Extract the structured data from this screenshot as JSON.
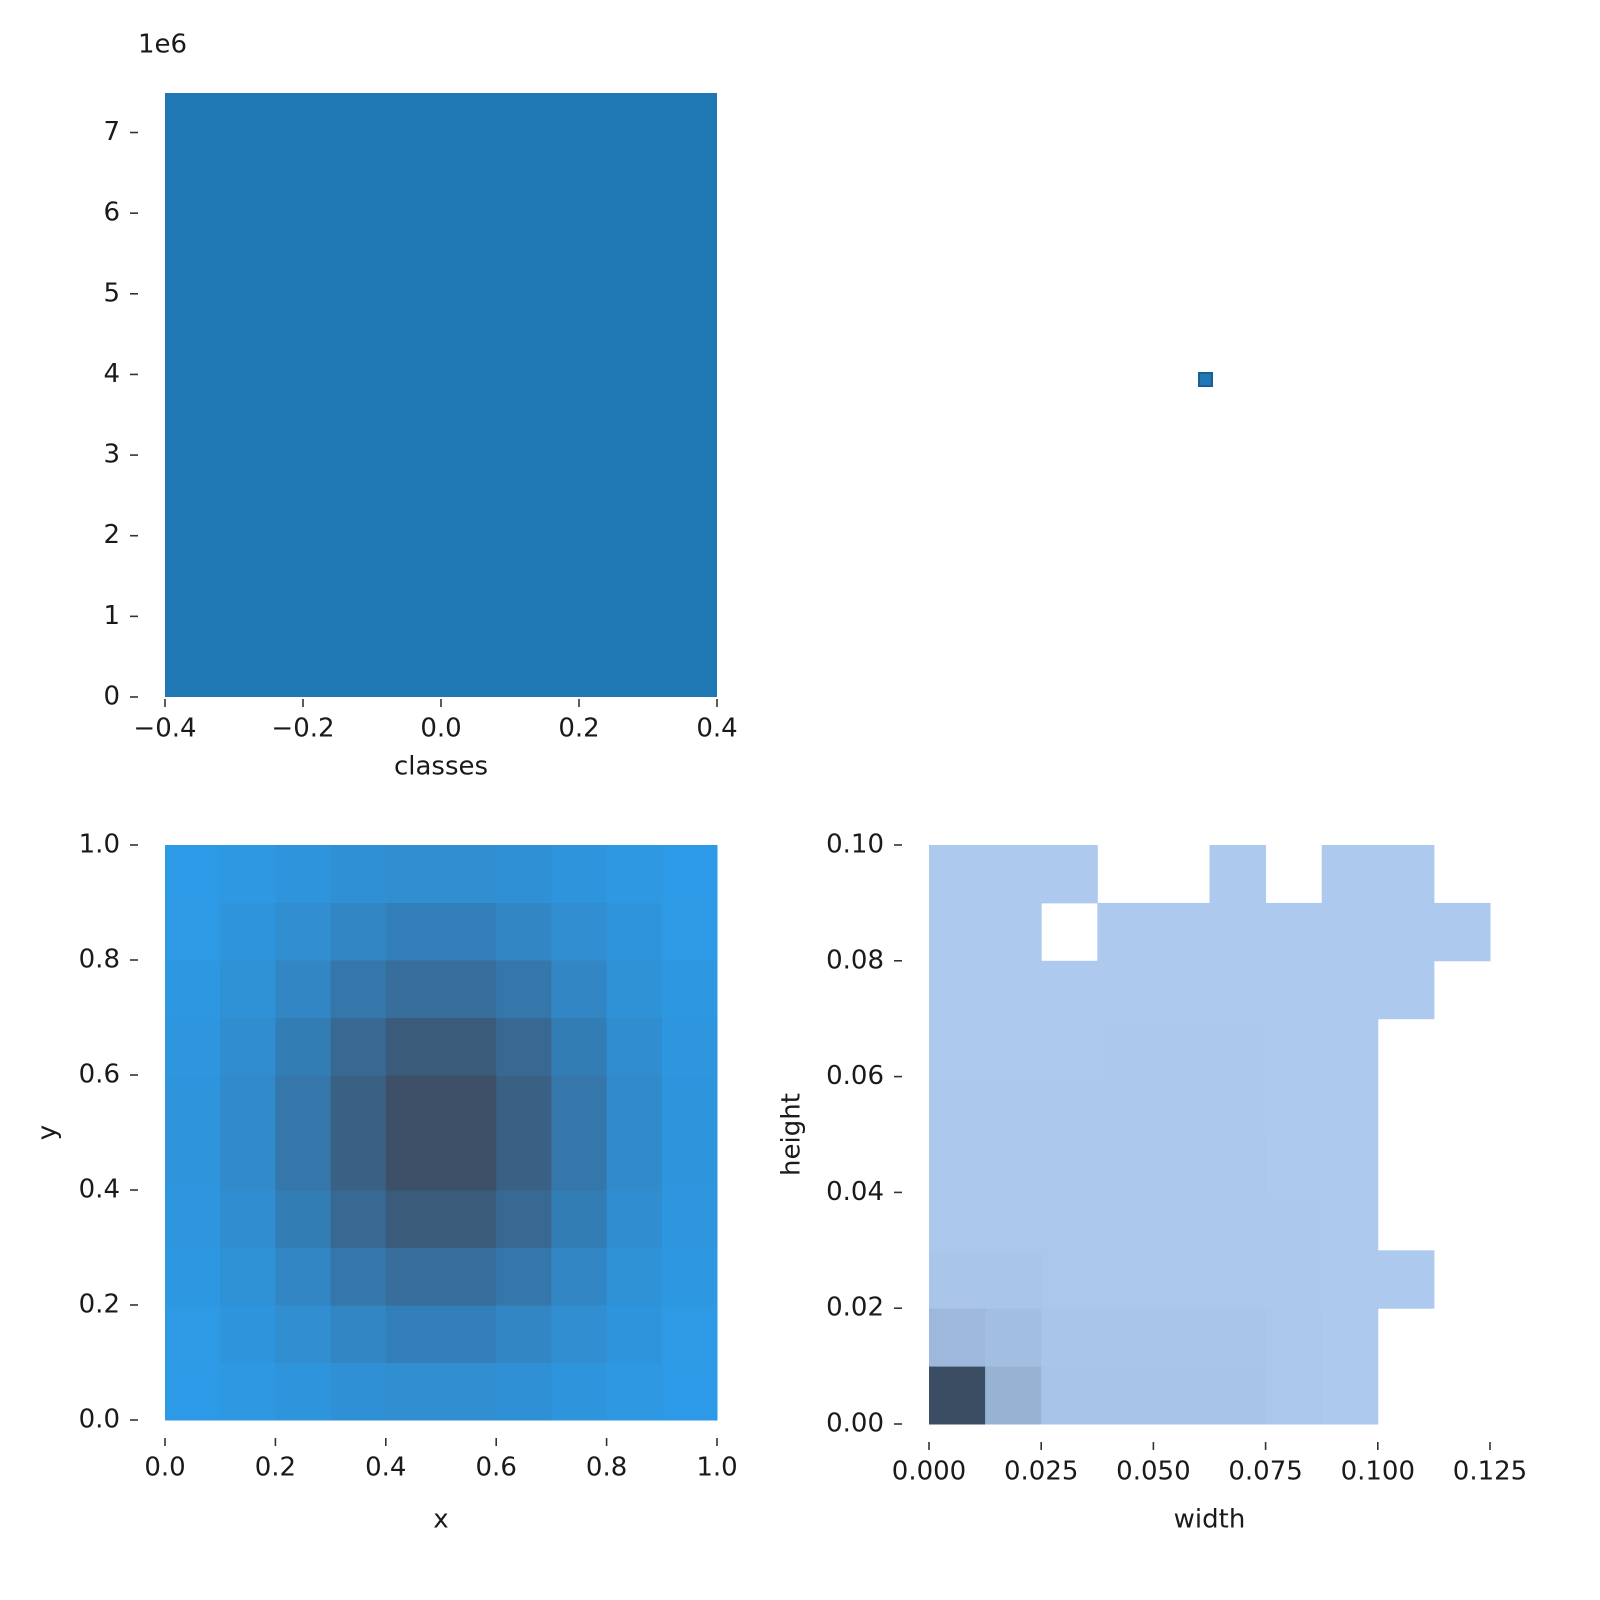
{
  "chart_data": [
    {
      "type": "bar",
      "xlabel": "classes",
      "y_offset_label": "1e6",
      "x": [
        0
      ],
      "values": [
        7490000
      ],
      "bar_width": 0.8,
      "color": "#1f77b4",
      "xlim": [
        -0.4,
        0.4
      ],
      "ylim": [
        0,
        7490000
      ],
      "xticks": [
        {
          "value": -0.4,
          "label": "−0.4"
        },
        {
          "value": -0.2,
          "label": "−0.2"
        },
        {
          "value": 0,
          "label": "0.0"
        },
        0.2,
        0.4
      ],
      "yticks": [
        {
          "value": 0,
          "label": "0"
        },
        {
          "value": 1000000,
          "label": "1"
        },
        {
          "value": 2000000,
          "label": "2"
        },
        {
          "value": 3000000,
          "label": "3"
        },
        {
          "value": 4000000,
          "label": "4"
        },
        {
          "value": 5000000,
          "label": "5"
        },
        {
          "value": 6000000,
          "label": "6"
        },
        {
          "value": 7000000,
          "label": "7"
        }
      ]
    },
    {
      "type": "hist2d",
      "xlabel": "x",
      "ylabel": "y",
      "x_bins": [
        0,
        0.1,
        0.2,
        0.3,
        0.4,
        0.5,
        0.6,
        0.7,
        0.8,
        0.9,
        1
      ],
      "y_bins": [
        0,
        0.1,
        0.2,
        0.3,
        0.4,
        0.5,
        0.6,
        0.7,
        0.8,
        0.9,
        1
      ],
      "counts": [
        [
          1,
          4,
          8,
          14,
          17,
          17,
          14,
          8,
          4,
          1
        ],
        [
          3,
          8,
          17,
          27,
          35,
          35,
          27,
          17,
          8,
          3
        ],
        [
          5,
          13,
          27,
          45,
          57,
          57,
          45,
          27,
          13,
          5
        ],
        [
          7,
          18,
          38,
          63,
          81,
          81,
          63,
          38,
          18,
          7
        ],
        [
          8,
          22,
          45,
          74,
          95,
          95,
          74,
          45,
          22,
          8
        ],
        [
          8,
          22,
          45,
          74,
          95,
          95,
          74,
          45,
          22,
          8
        ],
        [
          7,
          18,
          38,
          63,
          81,
          81,
          63,
          38,
          18,
          7
        ],
        [
          5,
          13,
          27,
          45,
          57,
          57,
          45,
          27,
          13,
          5
        ],
        [
          3,
          8,
          17,
          27,
          35,
          35,
          27,
          17,
          8,
          3
        ],
        [
          1,
          4,
          8,
          14,
          17,
          17,
          14,
          8,
          4,
          1
        ]
      ],
      "color_low": "#2d9be8",
      "color_high": "#3d5068",
      "xlim": [
        0,
        1
      ],
      "ylim": [
        0,
        1
      ],
      "xticks": [
        {
          "value": 0,
          "label": "0.0"
        },
        0.2,
        0.4,
        0.6,
        0.8,
        {
          "value": 1,
          "label": "1.0"
        }
      ],
      "yticks": [
        {
          "value": 0,
          "label": "0.0"
        },
        0.2,
        0.4,
        0.6,
        0.8,
        {
          "value": 1,
          "label": "1.0"
        }
      ]
    },
    {
      "type": "hist2d",
      "xlabel": "width",
      "ylabel": "height",
      "x_bins": [
        0,
        0.0125,
        0.025,
        0.0375,
        0.05,
        0.0625,
        0.075,
        0.0875,
        0.1,
        0.1125,
        0.125
      ],
      "y_bins": [
        0,
        0.01,
        0.02,
        0.03,
        0.04,
        0.05,
        0.06,
        0.07,
        0.08,
        0.09,
        0.1
      ],
      "counts": [
        [
          100,
          20,
          5,
          5,
          5,
          5,
          3,
          1,
          0,
          0
        ],
        [
          15,
          10,
          4,
          4,
          4,
          4,
          3,
          1,
          0,
          0
        ],
        [
          4,
          4,
          3,
          3,
          3,
          3,
          2,
          1,
          1,
          0
        ],
        [
          3,
          3,
          3,
          3,
          3,
          3,
          2,
          1,
          0,
          0
        ],
        [
          3,
          3,
          3,
          3,
          3,
          3,
          1,
          1,
          0,
          0
        ],
        [
          2,
          2,
          2,
          2,
          2,
          2,
          1,
          1,
          0,
          0
        ],
        [
          1,
          1,
          1,
          2,
          2,
          2,
          1,
          1,
          0,
          0
        ],
        [
          1,
          1,
          1,
          1,
          1,
          1,
          1,
          1,
          1,
          0
        ],
        [
          1,
          1,
          0,
          1,
          1,
          1,
          1,
          1,
          1,
          1
        ],
        [
          1,
          1,
          1,
          0,
          0,
          1,
          0,
          1,
          1,
          0
        ]
      ],
      "color_low": "#aecbef",
      "color_high": "#3a4d63",
      "xlim": [
        0,
        0.125
      ],
      "ylim": [
        0,
        0.1
      ],
      "xticks": [
        {
          "value": 0,
          "label": "0.000"
        },
        {
          "value": 0.025,
          "label": "0.025"
        },
        {
          "value": 0.05,
          "label": "0.050"
        },
        {
          "value": 0.075,
          "label": "0.075"
        },
        {
          "value": 0.1,
          "label": "0.100"
        },
        {
          "value": 0.125,
          "label": "0.125"
        }
      ],
      "yticks": [
        {
          "value": 0,
          "label": "0.00"
        },
        {
          "value": 0.02,
          "label": "0.02"
        },
        {
          "value": 0.04,
          "label": "0.04"
        },
        {
          "value": 0.06,
          "label": "0.06"
        },
        {
          "value": 0.08,
          "label": "0.08"
        },
        {
          "value": 0.1,
          "label": "0.10"
        }
      ]
    }
  ]
}
